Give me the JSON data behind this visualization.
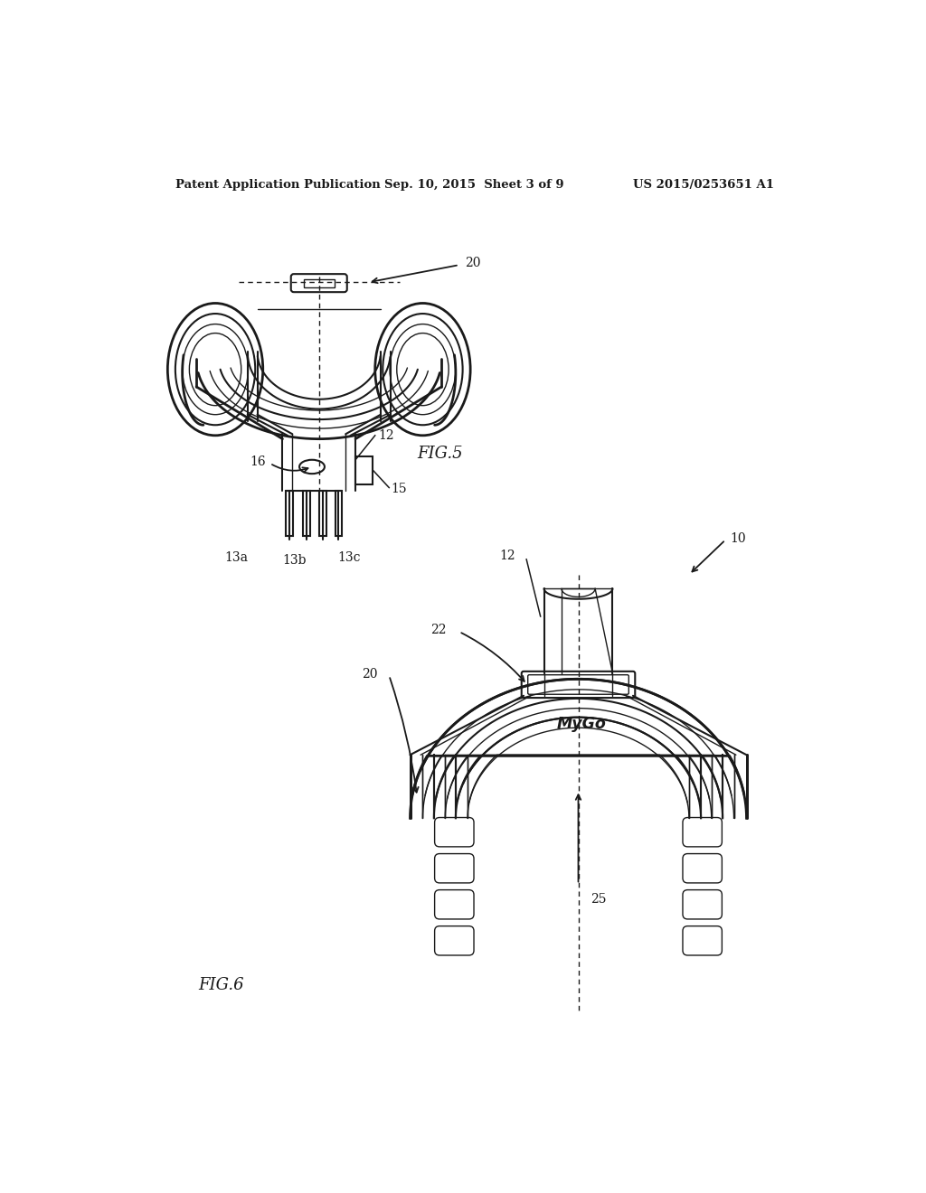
{
  "bg_color": "#ffffff",
  "line_color": "#1a1a1a",
  "header_left": "Patent Application Publication",
  "header_center": "Sep. 10, 2015  Sheet 3 of 9",
  "header_right": "US 2015/0253651 A1",
  "fig5_label": "FIG.5",
  "fig6_label": "FIG.6"
}
